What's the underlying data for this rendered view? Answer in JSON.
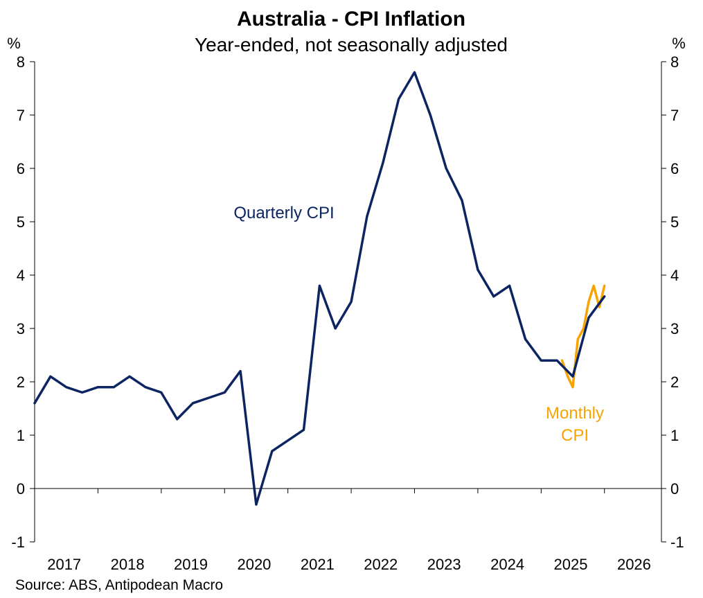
{
  "chart_data": {
    "type": "line",
    "title": "Australia - CPI Inflation",
    "subtitle": "Year-ended, not seasonally adjusted",
    "ylabel_left": "%",
    "ylabel_right": "%",
    "ylim": [
      -1,
      8
    ],
    "yticks": [
      -1,
      0,
      1,
      2,
      3,
      4,
      5,
      6,
      7,
      8
    ],
    "ytick_labels": [
      "-1",
      "0",
      "1",
      "2",
      "3",
      "4",
      "5",
      "6",
      "7",
      "8"
    ],
    "xlim": [
      2017.0,
      2026.9
    ],
    "xtick_labels": [
      "2017",
      "2018",
      "2019",
      "2020",
      "2021",
      "2022",
      "2023",
      "2024",
      "2025",
      "2026"
    ],
    "source": "Source: ABS, Antipodean Macro",
    "colors": {
      "quarterly": "#0c2461",
      "monthly": "#f7a400",
      "axis": "#000000"
    },
    "series": [
      {
        "name": "Quarterly CPI",
        "label_lines": [
          "Quarterly CPI"
        ],
        "color": "#0c2461",
        "x": [
          2017.0,
          2017.25,
          2017.5,
          2017.75,
          2018.0,
          2018.25,
          2018.5,
          2018.75,
          2019.0,
          2019.25,
          2019.5,
          2019.75,
          2020.0,
          2020.25,
          2020.5,
          2020.75,
          2021.0,
          2021.25,
          2021.5,
          2021.75,
          2022.0,
          2022.25,
          2022.5,
          2022.75,
          2023.0,
          2023.25,
          2023.5,
          2023.75,
          2024.0,
          2024.25,
          2024.5,
          2024.75,
          2025.0,
          2025.25,
          2025.5,
          2025.75,
          2026.0
        ],
        "values": [
          1.6,
          2.1,
          1.9,
          1.8,
          1.9,
          1.9,
          2.1,
          1.9,
          1.8,
          1.3,
          1.6,
          1.7,
          1.8,
          2.2,
          -0.3,
          0.7,
          0.9,
          1.1,
          3.8,
          3.0,
          3.5,
          5.1,
          6.1,
          7.3,
          7.8,
          7.0,
          6.0,
          5.4,
          4.1,
          3.6,
          3.8,
          2.8,
          2.4,
          2.4,
          2.1,
          3.2,
          3.6
        ]
      },
      {
        "name": "Monthly CPI",
        "label_lines": [
          "Monthly",
          "CPI"
        ],
        "color": "#f7a400",
        "x": [
          2025.33,
          2025.42,
          2025.5,
          2025.58,
          2025.67,
          2025.75,
          2025.83,
          2025.92,
          2026.0
        ],
        "values": [
          2.4,
          2.1,
          1.9,
          2.8,
          3.0,
          3.5,
          3.8,
          3.4,
          3.8
        ]
      }
    ]
  }
}
